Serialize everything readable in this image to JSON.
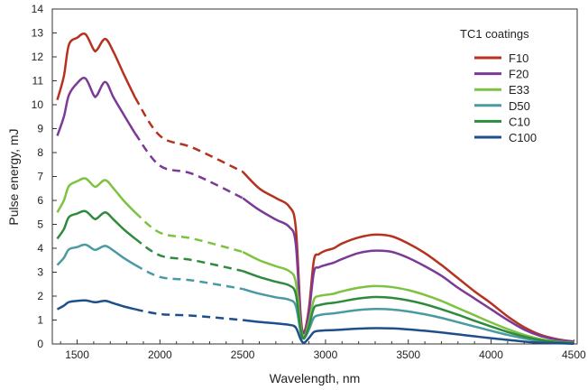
{
  "chart_data": {
    "type": "line",
    "xlabel": "Wavelength, nm",
    "ylabel": "Pulse energy, mJ",
    "xlim": [
      1350,
      4520
    ],
    "ylim": [
      0,
      14
    ],
    "xticks": [
      1500,
      2000,
      2500,
      3000,
      3500,
      4000,
      4500
    ],
    "yticks": [
      0,
      1,
      2,
      3,
      4,
      5,
      6,
      7,
      8,
      9,
      10,
      11,
      12,
      13,
      14
    ],
    "grid": false,
    "legend": {
      "title": "TC1 coatings",
      "position": "top-right"
    },
    "dashed_range": [
      1850,
      2500
    ],
    "series": [
      {
        "name": "F10",
        "color": "#b5321f",
        "x": [
          1380,
          1420,
          1450,
          1500,
          1550,
          1600,
          1620,
          1670,
          1720,
          1780,
          1850,
          2000,
          2200,
          2500,
          2600,
          2700,
          2780,
          2820,
          2850,
          2870,
          2900,
          2930,
          2960,
          3000,
          3050,
          3100,
          3200,
          3300,
          3400,
          3500,
          3600,
          3700,
          3800,
          3900,
          4000,
          4100,
          4200,
          4300,
          4400,
          4500
        ],
        "y": [
          10.2,
          11.2,
          12.5,
          12.8,
          12.95,
          12.3,
          12.3,
          12.75,
          12.2,
          11.3,
          10.3,
          8.7,
          8.2,
          7.2,
          6.5,
          6.1,
          5.75,
          4.9,
          1.2,
          0.5,
          1.5,
          3.5,
          3.75,
          3.9,
          4.0,
          4.2,
          4.45,
          4.57,
          4.5,
          4.2,
          3.8,
          3.3,
          2.75,
          2.2,
          1.7,
          1.15,
          0.7,
          0.38,
          0.2,
          0.1
        ]
      },
      {
        "name": "F20",
        "color": "#7b3a96",
        "x": [
          1380,
          1420,
          1450,
          1500,
          1550,
          1600,
          1620,
          1670,
          1720,
          1780,
          1850,
          2000,
          2200,
          2500,
          2600,
          2700,
          2780,
          2820,
          2850,
          2870,
          2900,
          2930,
          2960,
          3000,
          3050,
          3100,
          3200,
          3300,
          3400,
          3500,
          3600,
          3700,
          3800,
          3900,
          4000,
          4100,
          4200,
          4300,
          4400,
          4500
        ],
        "y": [
          8.7,
          9.5,
          10.4,
          10.9,
          11.1,
          10.4,
          10.4,
          10.95,
          10.3,
          9.6,
          8.8,
          7.45,
          7.1,
          6.1,
          5.6,
          5.2,
          4.9,
          4.2,
          1.0,
          0.45,
          1.3,
          3.0,
          3.2,
          3.3,
          3.4,
          3.55,
          3.8,
          3.9,
          3.85,
          3.6,
          3.25,
          2.85,
          2.35,
          1.9,
          1.45,
          1.0,
          0.6,
          0.33,
          0.18,
          0.08
        ]
      },
      {
        "name": "E33",
        "color": "#7ec242",
        "x": [
          1380,
          1420,
          1450,
          1500,
          1550,
          1600,
          1620,
          1670,
          1720,
          1780,
          1850,
          2000,
          2200,
          2500,
          2600,
          2700,
          2780,
          2820,
          2850,
          2870,
          2900,
          2930,
          2960,
          3000,
          3050,
          3100,
          3200,
          3300,
          3400,
          3500,
          3600,
          3700,
          3800,
          3900,
          4000,
          4100,
          4200,
          4300,
          4400,
          4500
        ],
        "y": [
          5.5,
          6.0,
          6.6,
          6.8,
          6.92,
          6.6,
          6.6,
          6.85,
          6.5,
          6.0,
          5.5,
          4.65,
          4.4,
          3.85,
          3.5,
          3.25,
          3.05,
          2.6,
          0.75,
          0.3,
          0.9,
          1.85,
          2.0,
          2.05,
          2.1,
          2.2,
          2.35,
          2.42,
          2.38,
          2.25,
          2.05,
          1.8,
          1.5,
          1.2,
          0.9,
          0.62,
          0.38,
          0.2,
          0.1,
          0.05
        ]
      },
      {
        "name": "D50",
        "color": "#4a9aa3",
        "x": [
          1380,
          1420,
          1450,
          1500,
          1550,
          1600,
          1620,
          1670,
          1720,
          1780,
          1850,
          2000,
          2200,
          2500,
          2600,
          2700,
          2780,
          2820,
          2850,
          2870,
          2900,
          2930,
          2960,
          3000,
          3050,
          3100,
          3200,
          3300,
          3400,
          3500,
          3600,
          3700,
          3800,
          3900,
          4000,
          4100,
          4200,
          4300,
          4400,
          4500
        ],
        "y": [
          3.3,
          3.6,
          3.95,
          4.05,
          4.15,
          3.95,
          3.95,
          4.1,
          3.9,
          3.6,
          3.3,
          2.8,
          2.65,
          2.3,
          2.1,
          1.95,
          1.85,
          1.6,
          0.5,
          0.22,
          0.6,
          1.1,
          1.2,
          1.25,
          1.28,
          1.33,
          1.42,
          1.46,
          1.44,
          1.36,
          1.24,
          1.09,
          0.91,
          0.73,
          0.55,
          0.38,
          0.23,
          0.12,
          0.06,
          0.03
        ]
      },
      {
        "name": "C10",
        "color": "#2e8b3e",
        "x": [
          1380,
          1420,
          1450,
          1500,
          1550,
          1600,
          1620,
          1670,
          1720,
          1780,
          1850,
          2000,
          2200,
          2500,
          2600,
          2700,
          2780,
          2820,
          2850,
          2870,
          2900,
          2930,
          2960,
          3000,
          3050,
          3100,
          3200,
          3300,
          3400,
          3500,
          3600,
          3700,
          3800,
          3900,
          4000,
          4100,
          4200,
          4300,
          4400,
          4500
        ],
        "y": [
          4.4,
          4.8,
          5.3,
          5.45,
          5.55,
          5.25,
          5.25,
          5.5,
          5.2,
          4.8,
          4.4,
          3.7,
          3.5,
          3.05,
          2.8,
          2.6,
          2.45,
          2.1,
          0.6,
          0.25,
          0.75,
          1.5,
          1.62,
          1.68,
          1.72,
          1.78,
          1.9,
          1.96,
          1.93,
          1.82,
          1.66,
          1.45,
          1.22,
          0.97,
          0.73,
          0.5,
          0.31,
          0.16,
          0.08,
          0.04
        ]
      },
      {
        "name": "C100",
        "color": "#1f4e8c",
        "x": [
          1380,
          1420,
          1450,
          1500,
          1550,
          1600,
          1620,
          1670,
          1720,
          1780,
          1850,
          2000,
          2200,
          2500,
          2600,
          2700,
          2780,
          2820,
          2850,
          2870,
          2900,
          2930,
          2960,
          3000,
          3050,
          3100,
          3200,
          3300,
          3400,
          3500,
          3600,
          3700,
          3800,
          3900,
          4000,
          4100,
          4200,
          4300,
          4400,
          4500
        ],
        "y": [
          1.45,
          1.6,
          1.75,
          1.8,
          1.82,
          1.75,
          1.75,
          1.8,
          1.7,
          1.57,
          1.45,
          1.25,
          1.18,
          1.0,
          0.92,
          0.86,
          0.8,
          0.69,
          0.2,
          0.05,
          0.25,
          0.5,
          0.55,
          0.57,
          0.58,
          0.6,
          0.64,
          0.66,
          0.65,
          0.61,
          0.55,
          0.48,
          0.4,
          0.32,
          0.24,
          0.17,
          0.1,
          0.05,
          0.03,
          0.01
        ]
      }
    ]
  }
}
